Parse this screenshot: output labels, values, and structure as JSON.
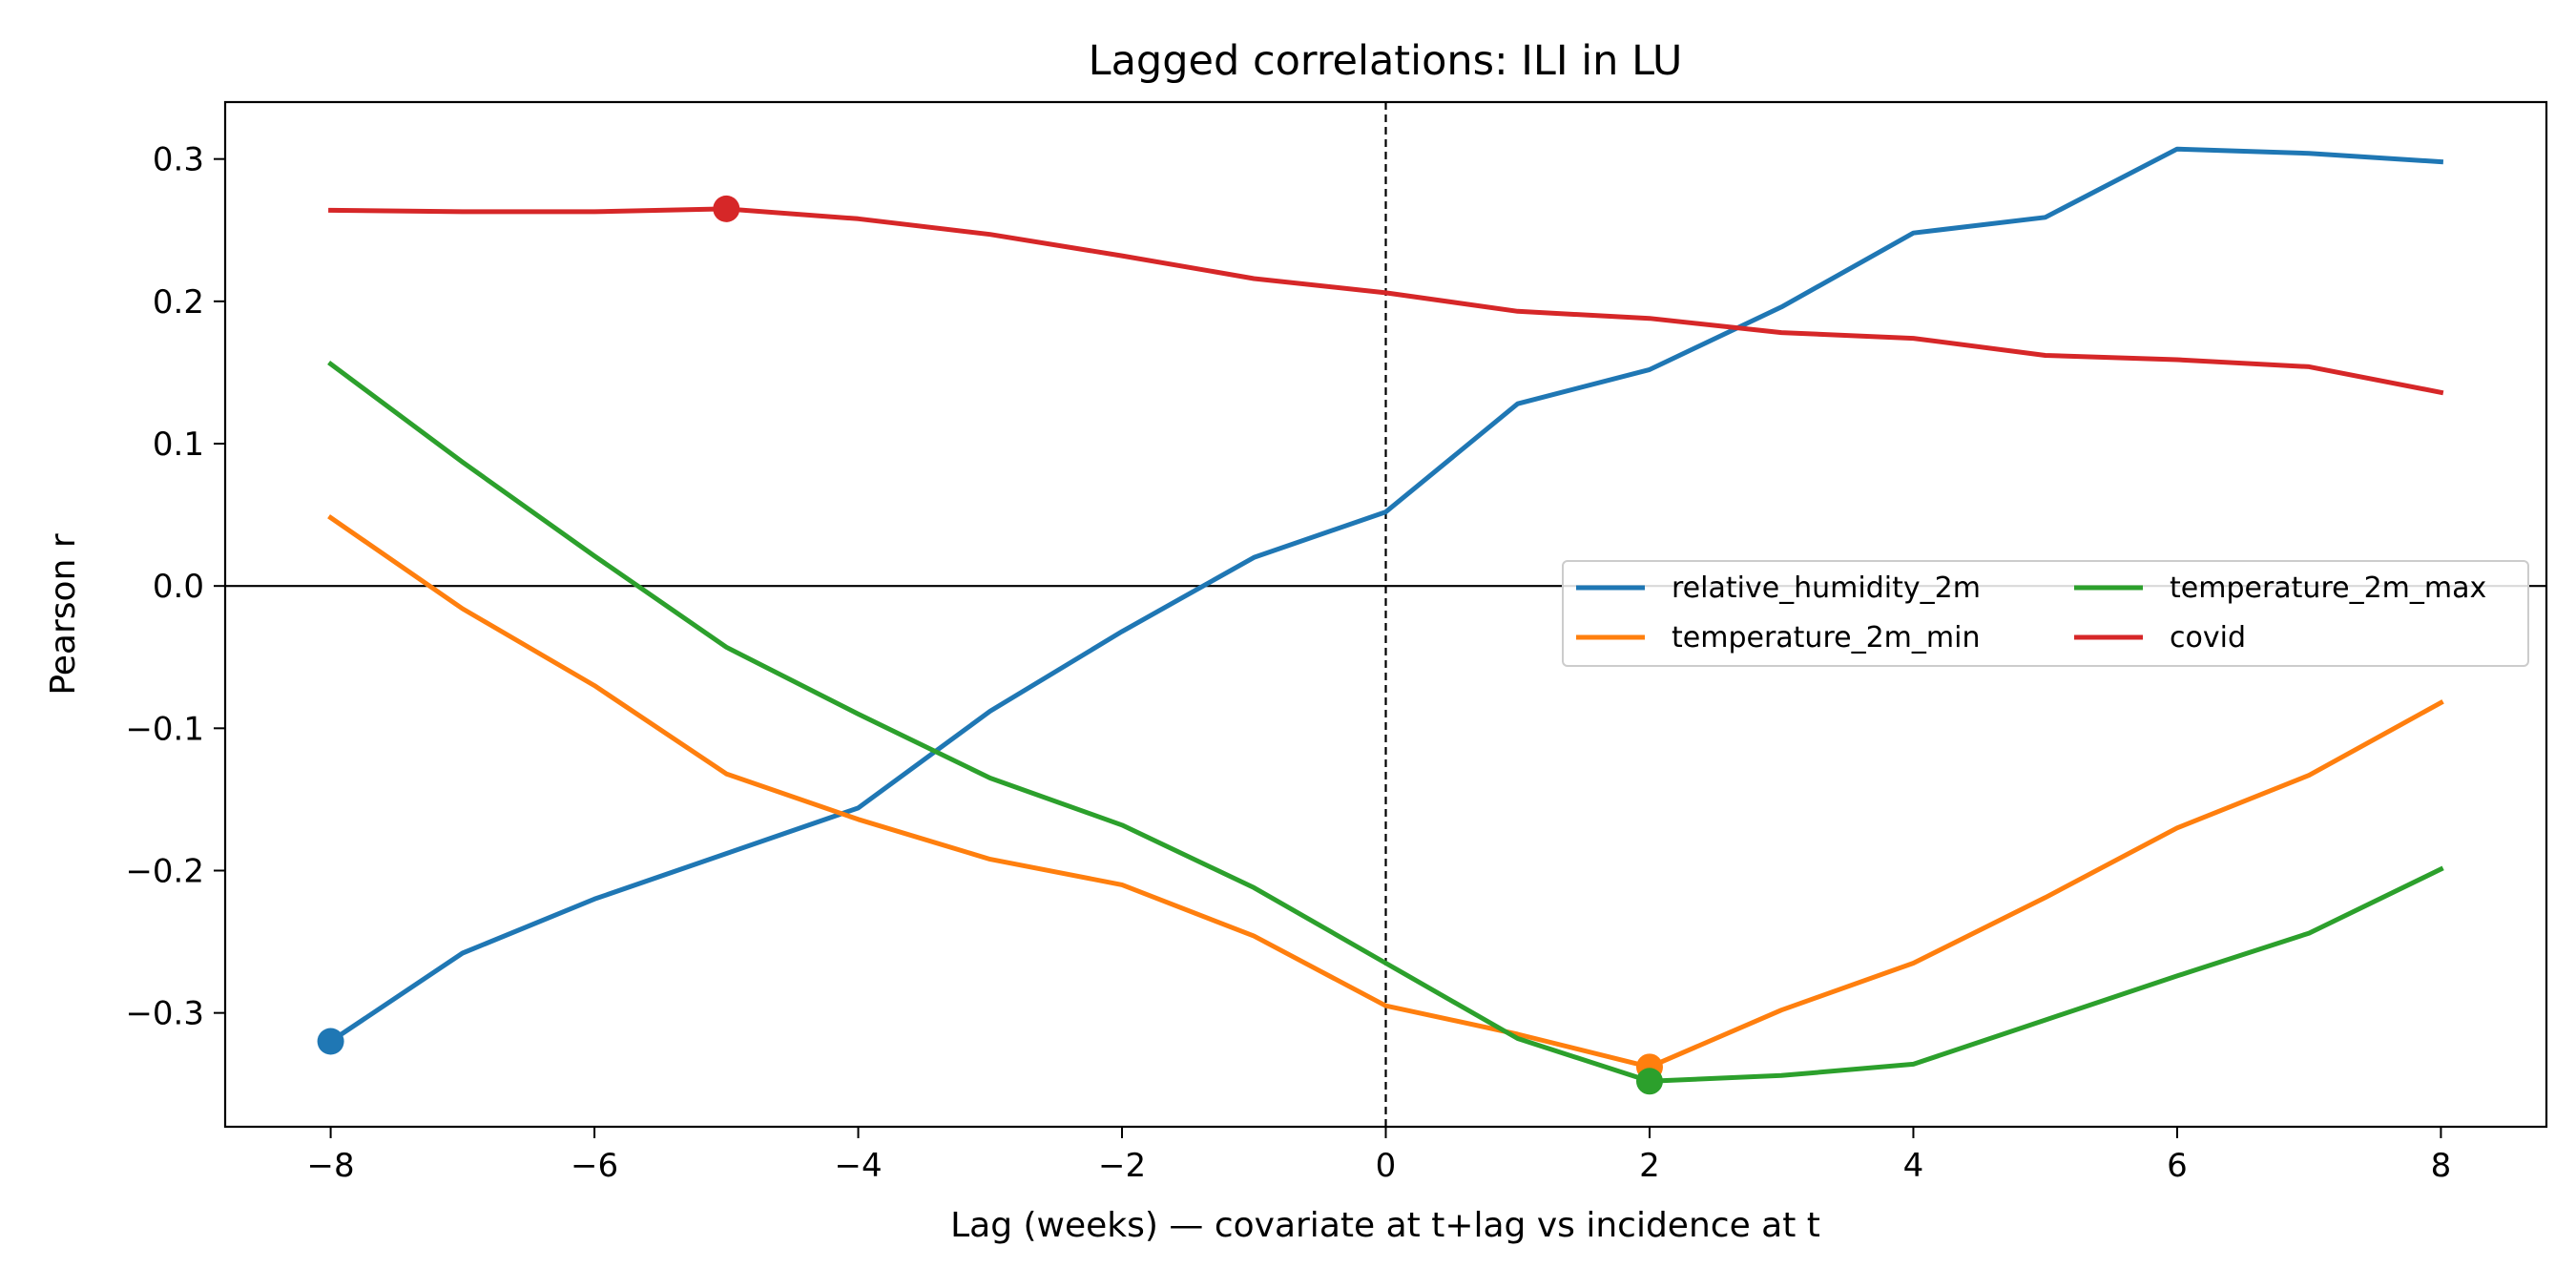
{
  "chart_data": {
    "type": "line",
    "title": "Lagged correlations: ILI in LU",
    "xlabel": "Lag (weeks) — covariate at t+lag vs incidence at t",
    "ylabel": "Pearson r",
    "xlim": [
      -8.8,
      8.8
    ],
    "ylim": [
      -0.38,
      0.34
    ],
    "x": [
      -8,
      -7,
      -6,
      -5,
      -4,
      -3,
      -2,
      -1,
      0,
      1,
      2,
      3,
      4,
      5,
      6,
      7,
      8
    ],
    "xticks": [
      -8,
      -6,
      -4,
      -2,
      0,
      2,
      4,
      6,
      8
    ],
    "xtick_labels": [
      "−8",
      "−6",
      "−4",
      "−2",
      "0",
      "2",
      "4",
      "6",
      "8"
    ],
    "yticks": [
      -0.3,
      -0.2,
      -0.1,
      0.0,
      0.1,
      0.2,
      0.3
    ],
    "ytick_labels": [
      "−0.3",
      "−0.2",
      "−0.1",
      "0.0",
      "0.1",
      "0.2",
      "0.3"
    ],
    "grid": false,
    "legend_position": "center-right",
    "reference_lines": {
      "horizontal_y": 0,
      "vertical_x": 0
    },
    "series": [
      {
        "name": "relative_humidity_2m",
        "color": "#1f77b4",
        "values": [
          -0.32,
          -0.258,
          -0.22,
          -0.188,
          -0.156,
          -0.088,
          -0.032,
          0.02,
          0.052,
          0.128,
          0.152,
          0.196,
          0.248,
          0.259,
          0.307,
          0.304,
          0.298
        ],
        "marker_x": -8,
        "marker_y": -0.32
      },
      {
        "name": "temperature_2m_min",
        "color": "#ff7f0e",
        "values": [
          0.048,
          -0.016,
          -0.07,
          -0.132,
          -0.164,
          -0.192,
          -0.21,
          -0.246,
          -0.295,
          -0.315,
          -0.338,
          -0.298,
          -0.265,
          -0.219,
          -0.17,
          -0.133,
          -0.082
        ],
        "marker_x": 2,
        "marker_y": -0.338
      },
      {
        "name": "temperature_2m_max",
        "color": "#2ca02c",
        "values": [
          0.156,
          0.087,
          0.021,
          -0.043,
          -0.09,
          -0.135,
          -0.168,
          -0.212,
          -0.265,
          -0.318,
          -0.348,
          -0.344,
          -0.336,
          -0.305,
          -0.274,
          -0.244,
          -0.199
        ],
        "marker_x": 2,
        "marker_y": -0.348
      },
      {
        "name": "covid",
        "color": "#d62728",
        "values": [
          0.264,
          0.263,
          0.263,
          0.265,
          0.258,
          0.247,
          0.232,
          0.216,
          0.206,
          0.193,
          0.188,
          0.178,
          0.174,
          0.162,
          0.159,
          0.154,
          0.136
        ],
        "marker_x": -5,
        "marker_y": 0.265
      }
    ]
  }
}
